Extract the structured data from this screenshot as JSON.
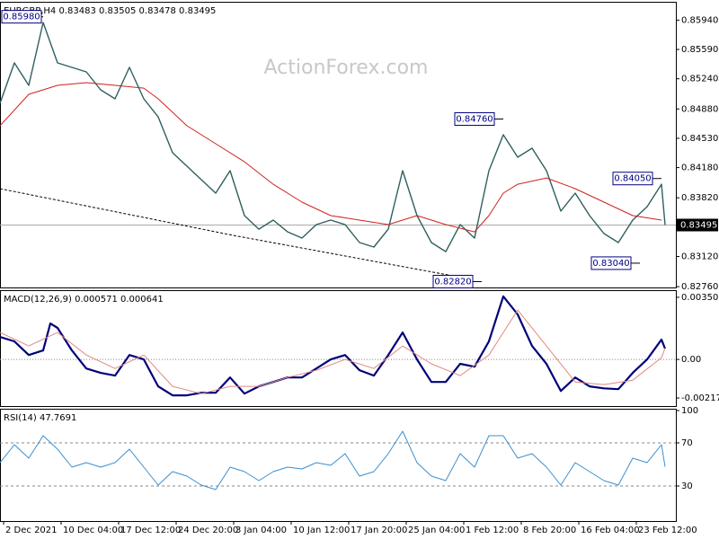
{
  "chart_data": [
    {
      "type": "line",
      "title": "EURGBP,H4 0.83483 0.83505 0.83478 0.83495",
      "watermark": "ActionForex.com",
      "xlim": [
        0,
        188
      ],
      "ylim": [
        0.8275,
        0.8618
      ],
      "yticks": [
        {
          "value": 0.8594,
          "label": "0.85940"
        },
        {
          "value": 0.8559,
          "label": "0.85590"
        },
        {
          "value": 0.8524,
          "label": "0.85240"
        },
        {
          "value": 0.8488,
          "label": "0.84880"
        },
        {
          "value": 0.8453,
          "label": "0.84530"
        },
        {
          "value": 0.8418,
          "label": "0.84180"
        },
        {
          "value": 0.8382,
          "label": "0.83820"
        },
        {
          "value": 0.8312,
          "label": "0.83120"
        },
        {
          "value": 0.8276,
          "label": "0.82760"
        }
      ],
      "current": {
        "value": 0.83495,
        "label": "0.83495"
      },
      "series": [
        {
          "color": "#2f5f5f",
          "width": 1.4,
          "dash": false,
          "x": [
            0,
            4,
            8,
            12,
            16,
            20,
            24,
            28,
            32,
            36,
            40,
            44,
            48,
            52,
            56,
            60,
            64,
            68,
            72,
            76,
            80,
            84,
            88,
            92,
            96,
            100,
            104,
            108,
            112,
            116,
            120,
            124,
            128,
            132,
            136,
            140,
            144,
            148,
            152,
            156,
            160,
            164,
            168,
            172,
            176,
            180,
            184,
            185
          ],
          "values": [
            0.84947,
            0.8543,
            0.85162,
            0.85912,
            0.8543,
            0.85376,
            0.85322,
            0.85108,
            0.85001,
            0.85376,
            0.85001,
            0.84786,
            0.84358,
            0.84197,
            0.84036,
            0.83875,
            0.84143,
            0.83607,
            0.83446,
            0.83554,
            0.83414,
            0.83339,
            0.835,
            0.83554,
            0.835,
            0.83286,
            0.83232,
            0.83446,
            0.84143,
            0.83607,
            0.83286,
            0.83178,
            0.835,
            0.83339,
            0.84143,
            0.84572,
            0.84304,
            0.84411,
            0.84143,
            0.83661,
            0.83875,
            0.83607,
            0.83393,
            0.83286,
            0.83554,
            0.83714,
            0.83982,
            0.83495
          ]
        },
        {
          "color": "#d02020",
          "width": 1,
          "dash": false,
          "x": [
            0,
            8,
            16,
            24,
            32,
            40,
            44,
            52,
            60,
            68,
            76,
            84,
            92,
            100,
            108,
            116,
            124,
            132,
            136,
            140,
            144,
            152,
            160,
            168,
            176,
            184
          ],
          "values": [
            0.84679,
            0.85054,
            0.85162,
            0.85194,
            0.85162,
            0.85129,
            0.85001,
            0.84679,
            0.84465,
            0.8425,
            0.83982,
            0.83768,
            0.83607,
            0.83554,
            0.835,
            0.83607,
            0.835,
            0.83414,
            0.83607,
            0.83875,
            0.83982,
            0.84057,
            0.83929,
            0.83768,
            0.83607,
            0.83554
          ]
        },
        {
          "color": "#000000",
          "width": 1,
          "dash": true,
          "x": [
            0,
            65,
            130
          ],
          "values": [
            0.83929,
            0.83371,
            0.82857
          ]
        }
      ],
      "annotations": [
        {
          "x": 12,
          "value": 0.8598,
          "label": "0.85980"
        },
        {
          "x": 140,
          "value": 0.8476,
          "label": "0.84760"
        },
        {
          "x": 134,
          "value": 0.8282,
          "label": "0.82820"
        },
        {
          "x": 184,
          "value": 0.8405,
          "label": "0.84050"
        },
        {
          "x": 178,
          "value": 0.8304,
          "label": "0.83040"
        }
      ]
    },
    {
      "type": "line",
      "title": "MACD(12,26,9) 0.000571 0.000641",
      "xlim": [
        0,
        188
      ],
      "ylim": [
        -0.00253,
        0.00381
      ],
      "yticks": [
        0.003509,
        {
          "value": 0,
          "label": "0.00"
        },
        -0.002176
      ],
      "levels": [
        0
      ],
      "level_dash": "1 2",
      "series": [
        {
          "color": "#00007a",
          "width": 2.2,
          "dash": false,
          "x": [
            0,
            4,
            8,
            12,
            14,
            16,
            20,
            24,
            28,
            32,
            36,
            40,
            44,
            48,
            52,
            56,
            60,
            64,
            68,
            72,
            76,
            80,
            84,
            88,
            92,
            96,
            100,
            104,
            108,
            112,
            116,
            120,
            124,
            128,
            132,
            136,
            140,
            144,
            148,
            152,
            156,
            160,
            164,
            168,
            172,
            176,
            180,
            184,
            185
          ],
          "values": [
            0.00127,
            0.00102,
            0.00025,
            0.00051,
            0.00203,
            0.00178,
            0.00051,
            -0.00051,
            -0.00076,
            -0.00091,
            0.00025,
            0,
            -0.00152,
            -0.00203,
            -0.00203,
            -0.00188,
            -0.00188,
            -0.00102,
            -0.00193,
            -0.00152,
            -0.00127,
            -0.00102,
            -0.00102,
            -0.00051,
            0,
            0.00025,
            -0.00061,
            -0.00091,
            0.00025,
            0.00152,
            0,
            -0.00127,
            -0.00127,
            -0.00025,
            -0.00041,
            0.00102,
            0.00356,
            0.00254,
            0.00076,
            -0.00025,
            -0.00178,
            -0.00102,
            -0.00152,
            -0.00163,
            -0.00168,
            -0.00076,
            0,
            0.00112,
            0.00061
          ]
        },
        {
          "color": "#e08a80",
          "width": 1,
          "dash": false,
          "x": [
            0,
            8,
            16,
            24,
            32,
            40,
            48,
            56,
            64,
            72,
            80,
            88,
            96,
            104,
            112,
            120,
            128,
            136,
            144,
            152,
            160,
            168,
            176,
            184,
            185
          ],
          "values": [
            0.00152,
            0.00076,
            0.00152,
            0.00025,
            -0.00051,
            0.00025,
            -0.00152,
            -0.00193,
            -0.00152,
            -0.00152,
            -0.00102,
            -0.00061,
            0,
            -0.00051,
            0.00076,
            -0.00025,
            -0.00091,
            0.00025,
            0.00279,
            0.00076,
            -0.00127,
            -0.00142,
            -0.00117,
            0.0001,
            0.00064
          ]
        }
      ]
    },
    {
      "type": "line",
      "title": "RSI(14) 47.7691",
      "xlim": [
        0,
        188
      ],
      "ylim": [
        0,
        100
      ],
      "yticks": [
        100,
        70,
        30
      ],
      "levels": [
        70,
        30
      ],
      "level_dash": "3 3",
      "xticks": [
        {
          "value": 1,
          "label": "2 Dec 2021"
        },
        {
          "value": 17,
          "label": "10 Dec 04:00"
        },
        {
          "value": 33,
          "label": "17 Dec 12:00"
        },
        {
          "value": 49,
          "label": "24 Dec 20:00"
        },
        {
          "value": 65,
          "label": "3 Jan 04:00"
        },
        {
          "value": 81,
          "label": "10 Jan 12:00"
        },
        {
          "value": 97,
          "label": "17 Jan 20:00"
        },
        {
          "value": 113,
          "label": "25 Jan 04:00"
        },
        {
          "value": 129,
          "label": "1 Feb 12:00"
        },
        {
          "value": 145,
          "label": "8 Feb 20:00"
        },
        {
          "value": 161,
          "label": "16 Feb 04:00"
        },
        {
          "value": 177,
          "label": "23 Feb 12:00"
        }
      ],
      "series": [
        {
          "color": "#3a8fd0",
          "width": 1,
          "dash": false,
          "x": [
            0,
            4,
            8,
            12,
            16,
            20,
            24,
            28,
            32,
            36,
            40,
            44,
            48,
            52,
            56,
            60,
            64,
            68,
            72,
            76,
            80,
            84,
            88,
            92,
            96,
            100,
            104,
            108,
            112,
            116,
            120,
            124,
            128,
            132,
            136,
            140,
            144,
            148,
            152,
            156,
            160,
            164,
            168,
            172,
            176,
            180,
            184,
            185
          ],
          "values": [
            51.7,
            68.3,
            55.8,
            76.7,
            64.2,
            47.5,
            51.7,
            47.5,
            51.7,
            64.2,
            47.5,
            30.8,
            43.3,
            39.2,
            30.8,
            26.7,
            47.5,
            43.3,
            35,
            43.3,
            47.5,
            45.8,
            51.7,
            49.2,
            60,
            39.2,
            43.3,
            60,
            80.8,
            51.7,
            39.2,
            35,
            60,
            47.5,
            76.7,
            76.7,
            55.8,
            60,
            47.5,
            30.8,
            51.7,
            43.3,
            35,
            30.8,
            55.8,
            51.7,
            68.3,
            47.8
          ]
        }
      ]
    }
  ]
}
